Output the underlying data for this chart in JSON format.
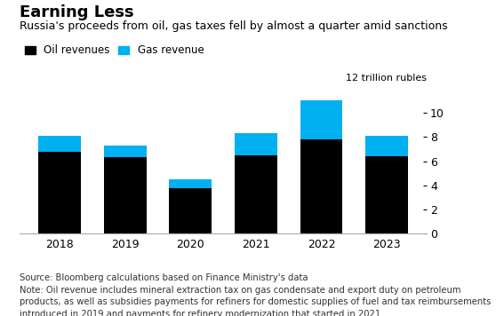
{
  "title": "Earning Less",
  "subtitle": "Russia's proceeds from oil, gas taxes fell by almost a quarter amid sanctions",
  "legend_labels": [
    "Oil revenues",
    "Gas revenue"
  ],
  "oil_color": "#000000",
  "gas_color": "#00b0f0",
  "years": [
    2018,
    2019,
    2020,
    2021,
    2022,
    2023
  ],
  "oil_values": [
    6.8,
    6.3,
    3.8,
    6.5,
    7.8,
    6.4
  ],
  "gas_values": [
    1.3,
    1.0,
    0.7,
    1.8,
    3.2,
    1.7
  ],
  "ylim": [
    0,
    12
  ],
  "yticks": [
    0,
    2,
    4,
    6,
    8,
    10
  ],
  "ylabel_annotation": "12 trillion rubles",
  "source_line1": "Source: Bloomberg calculations based on Finance Ministry's data",
  "source_line2": "Note: Oil revenue includes mineral extraction tax on gas condensate and export duty on petroleum",
  "source_line3": "products, as well as subsidies payments for refiners for domestic supplies of fuel and tax reimbursements",
  "source_line4": "introduced in 2019 and payments for refinery modernization that started in 2021",
  "background_color": "#ffffff",
  "title_fontsize": 13,
  "subtitle_fontsize": 9,
  "legend_fontsize": 8.5,
  "tick_fontsize": 9,
  "annotation_fontsize": 8,
  "source_fontsize": 7.2,
  "bar_width": 0.65
}
